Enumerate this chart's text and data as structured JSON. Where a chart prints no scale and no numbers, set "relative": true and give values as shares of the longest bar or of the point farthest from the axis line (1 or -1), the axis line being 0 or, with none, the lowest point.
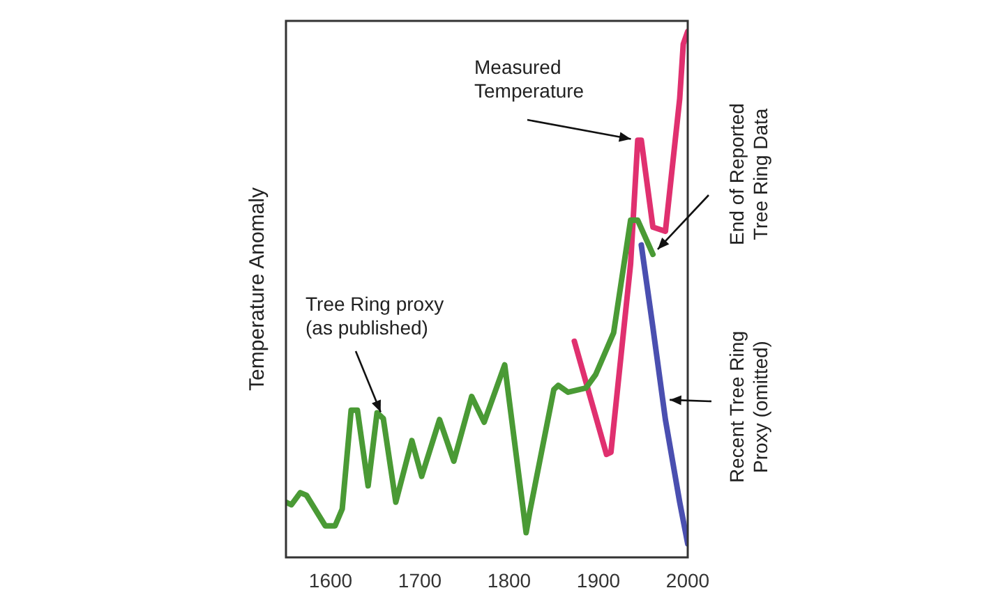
{
  "chart_data": {
    "type": "line",
    "relative": true,
    "ylabel": "Temperature Anomaly",
    "xlim": [
      1550,
      2000
    ],
    "xticks": [
      1600,
      1700,
      1800,
      1900,
      2000
    ],
    "legend": false,
    "grid": false,
    "marker": "none",
    "line_style": "solid",
    "annotations": [
      {
        "text": "Measured\nTemperature",
        "x": 1944,
        "y": 0.793
      },
      {
        "text": "End of Reported\nTree Ring Data",
        "x": 1961,
        "y": 0.576
      },
      {
        "text": "Tree Ring proxy\n(as published)",
        "x": 1659,
        "y": 0.264
      },
      {
        "text": "Recent Tree Ring\nProxy (omitted)",
        "x": 1972,
        "y": 0.3
      }
    ],
    "series": [
      {
        "color": "#4a9a35",
        "x": [
          1550,
          1556,
          1566,
          1573,
          1594,
          1605,
          1613,
          1623,
          1630,
          1642,
          1652,
          1659,
          1673,
          1691,
          1702,
          1722,
          1738,
          1758,
          1772,
          1795,
          1819,
          1823,
          1850,
          1855,
          1866,
          1886,
          1897,
          1917,
          1936,
          1944,
          1961
        ],
        "values": [
          0.105,
          0.1,
          0.123,
          0.118,
          0.06,
          0.06,
          0.092,
          0.28,
          0.28,
          0.136,
          0.275,
          0.264,
          0.105,
          0.222,
          0.154,
          0.262,
          0.183,
          0.306,
          0.257,
          0.366,
          0.047,
          0.086,
          0.319,
          0.327,
          0.314,
          0.322,
          0.348,
          0.427,
          0.641,
          0.641,
          0.576
        ]
      },
      {
        "color": "#e0306f",
        "x": [
          1873,
          1909,
          1914,
          1936,
          1944,
          1948,
          1961,
          1975,
          1991,
          1995,
          2000
        ],
        "values": [
          0.411,
          0.196,
          0.2,
          0.558,
          0.793,
          0.793,
          0.628,
          0.62,
          0.872,
          0.976,
          1
        ]
      },
      {
        "color": "#4a4fb0",
        "x": [
          1948,
          1961,
          1975,
          1991,
          2000
        ],
        "values": [
          0.594,
          0.437,
          0.262,
          0.105,
          0.026
        ]
      }
    ]
  }
}
